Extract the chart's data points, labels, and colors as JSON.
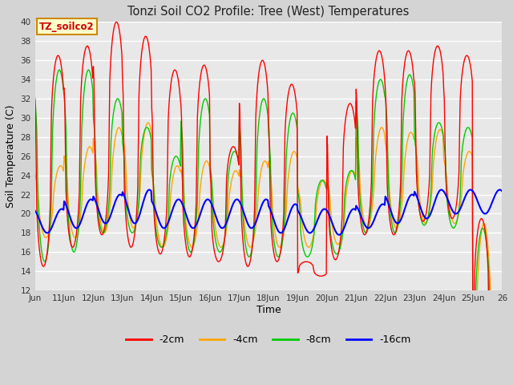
{
  "title": "Tonzi Soil CO2 Profile: Tree (West) Temperatures",
  "xlabel": "Time",
  "ylabel": "Soil Temperature (C)",
  "ylim": [
    12,
    40
  ],
  "yticks": [
    12,
    14,
    16,
    18,
    20,
    22,
    24,
    26,
    28,
    30,
    32,
    34,
    36,
    38,
    40
  ],
  "colors": {
    "2cm": "#ff0000",
    "4cm": "#ffa500",
    "8cm": "#00cc00",
    "16cm": "#0000ff"
  },
  "legend_labels": [
    "-2cm",
    "-4cm",
    "-8cm",
    "-16cm"
  ],
  "legend_colors": [
    "#ff0000",
    "#ffa500",
    "#00cc00",
    "#0000ff"
  ],
  "annotation_text": "TZ_soilco2",
  "annotation_box_color": "#ffffcc",
  "annotation_border_color": "#cc8800",
  "fig_bg_color": "#d4d4d4",
  "plot_bg_color": "#e8e8e8",
  "grid_color": "#ffffff",
  "tick_days": [
    10,
    11,
    12,
    13,
    14,
    15,
    16,
    17,
    18,
    19,
    20,
    21,
    22,
    23,
    24,
    25,
    26
  ],
  "tick_labels": [
    "Jun",
    "11Jun",
    "12Jun",
    "13Jun",
    "14Jun",
    "15Jun",
    "16Jun",
    "17Jun",
    "18Jun",
    "19Jun",
    "20Jun",
    "21Jun",
    "22Jun",
    "23Jun",
    "24Jun",
    "25Jun",
    "26"
  ],
  "xlim": [
    10,
    26
  ],
  "red_peaks": [
    36.5,
    37.5,
    40.0,
    38.5,
    35.0,
    35.5,
    27.0,
    36.0,
    33.5,
    13.5,
    31.5,
    37.0,
    37.0,
    37.5,
    36.5,
    0
  ],
  "red_troughs": [
    14.5,
    16.5,
    17.8,
    16.5,
    15.8,
    15.5,
    15.0,
    14.5,
    15.0,
    15.0,
    15.2,
    17.8,
    17.8,
    19.2,
    19.5,
    19.5
  ],
  "grn_peaks": [
    35.0,
    35.0,
    32.0,
    29.0,
    26.0,
    32.0,
    26.5,
    32.0,
    30.5,
    23.5,
    24.5,
    34.0,
    34.5,
    29.5,
    29.0,
    0
  ],
  "grn_troughs": [
    15.0,
    16.0,
    18.0,
    18.0,
    16.5,
    16.0,
    16.0,
    15.5,
    15.5,
    15.5,
    15.8,
    18.0,
    18.0,
    18.8,
    18.5,
    18.5
  ],
  "org_peaks": [
    25.0,
    27.0,
    29.0,
    29.5,
    25.0,
    25.5,
    24.5,
    25.5,
    26.5,
    23.5,
    24.5,
    29.0,
    28.5,
    28.8,
    26.5,
    0
  ],
  "org_troughs": [
    17.5,
    17.5,
    18.0,
    18.5,
    16.5,
    16.5,
    16.5,
    16.5,
    16.5,
    16.5,
    16.8,
    18.5,
    18.5,
    19.0,
    19.0,
    19.0
  ],
  "blu_peaks": [
    20.5,
    21.5,
    22.0,
    22.5,
    21.5,
    21.5,
    21.5,
    21.5,
    21.0,
    20.5,
    20.5,
    21.0,
    22.0,
    22.5,
    22.5,
    22.5
  ],
  "blu_troughs": [
    18.0,
    18.5,
    19.0,
    19.0,
    18.5,
    18.5,
    18.5,
    18.5,
    18.0,
    18.0,
    17.8,
    18.5,
    19.0,
    19.5,
    20.0,
    20.0
  ],
  "n_days": 16,
  "ppd": 48,
  "start_day": 10,
  "peak_hour": 14,
  "trough_hour": 4,
  "red_peak_hour": 13,
  "grn_peak_hour": 14,
  "org_peak_hour": 15,
  "blu_peak_hour": 16
}
